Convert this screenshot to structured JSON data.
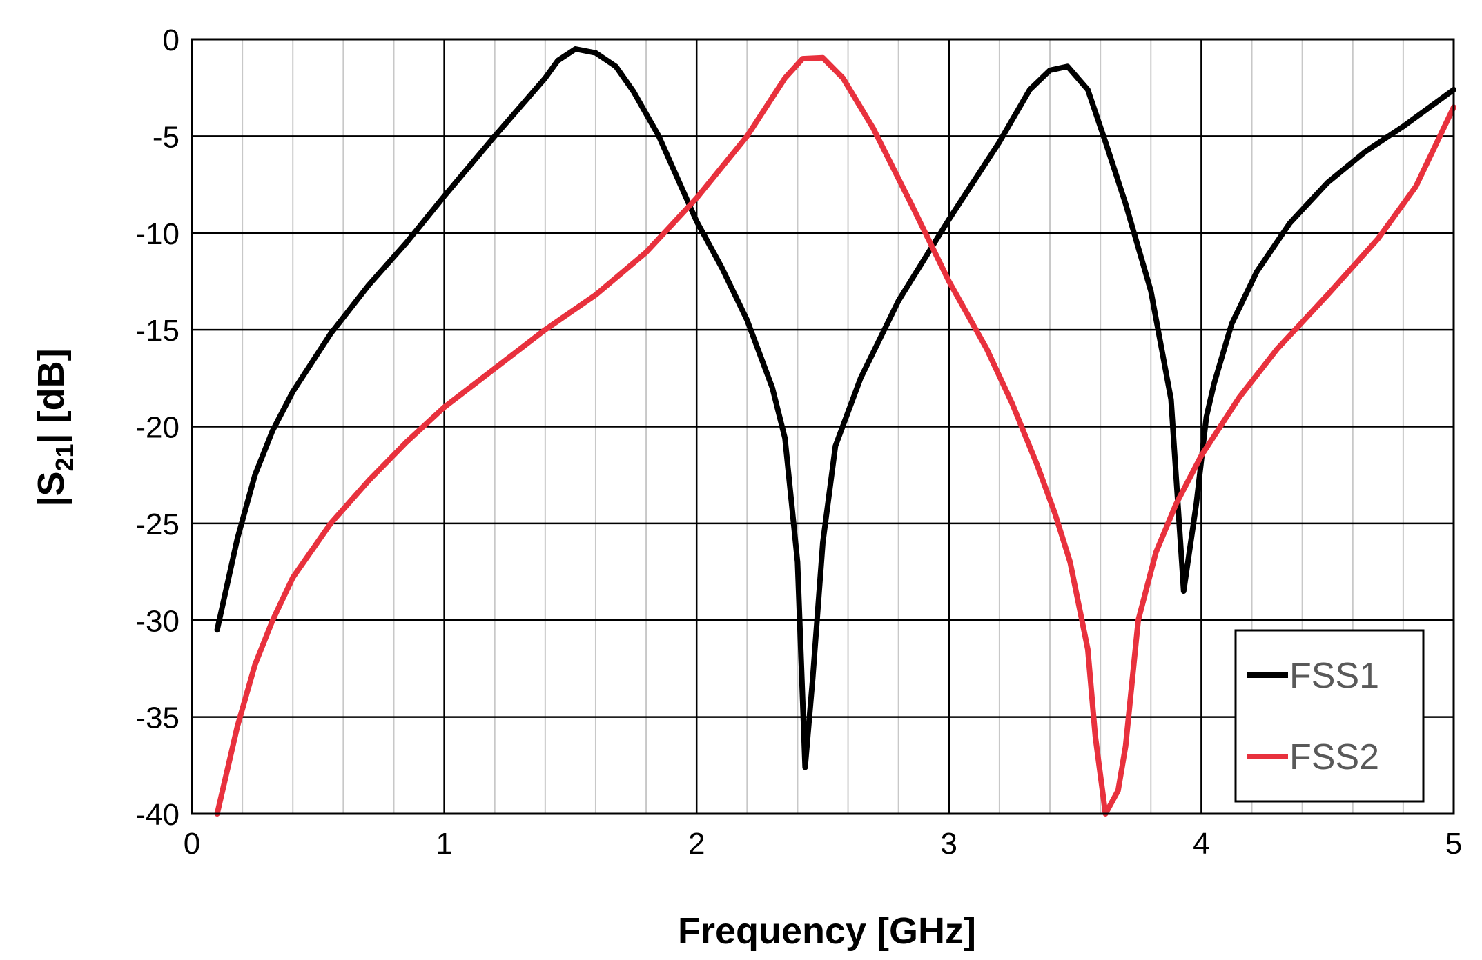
{
  "chart_data": {
    "type": "line",
    "xlabel": "Frequency [GHz]",
    "ylabel_main": "|S",
    "ylabel_sub": "21",
    "ylabel_tail": "| [dB]",
    "xlim": [
      0,
      5
    ],
    "ylim": [
      -40,
      0
    ],
    "x_ticks": [
      0,
      1,
      2,
      3,
      4,
      5
    ],
    "x_tick_labels": [
      "0",
      "1",
      "2",
      "3",
      "4",
      "5"
    ],
    "y_ticks": [
      0,
      -5,
      -10,
      -15,
      -20,
      -25,
      -30,
      -35,
      -40
    ],
    "y_tick_labels": [
      "0",
      "-5",
      "-10",
      "-15",
      "-20",
      "-25",
      "-30",
      "-35",
      "-40"
    ],
    "x_minor_step": 0.2,
    "grid": true,
    "legend": "bottom-right",
    "series": [
      {
        "name": "FSS1",
        "color": "#000000",
        "points": [
          [
            0.1,
            -30.5
          ],
          [
            0.18,
            -25.8
          ],
          [
            0.25,
            -22.5
          ],
          [
            0.32,
            -20.2
          ],
          [
            0.4,
            -18.2
          ],
          [
            0.55,
            -15.2
          ],
          [
            0.7,
            -12.7
          ],
          [
            0.85,
            -10.5
          ],
          [
            1.0,
            -8.1
          ],
          [
            1.2,
            -5.0
          ],
          [
            1.4,
            -2.0
          ],
          [
            1.45,
            -1.1
          ],
          [
            1.52,
            -0.5
          ],
          [
            1.6,
            -0.7
          ],
          [
            1.68,
            -1.4
          ],
          [
            1.75,
            -2.7
          ],
          [
            1.85,
            -5.0
          ],
          [
            2.0,
            -9.4
          ],
          [
            2.1,
            -11.8
          ],
          [
            2.2,
            -14.5
          ],
          [
            2.3,
            -18.0
          ],
          [
            2.35,
            -20.6
          ],
          [
            2.4,
            -27.0
          ],
          [
            2.43,
            -37.6
          ],
          [
            2.46,
            -33.0
          ],
          [
            2.5,
            -26.0
          ],
          [
            2.55,
            -21.0
          ],
          [
            2.65,
            -17.5
          ],
          [
            2.8,
            -13.5
          ],
          [
            3.0,
            -9.3
          ],
          [
            3.2,
            -5.3
          ],
          [
            3.32,
            -2.6
          ],
          [
            3.4,
            -1.6
          ],
          [
            3.47,
            -1.4
          ],
          [
            3.55,
            -2.6
          ],
          [
            3.62,
            -5.3
          ],
          [
            3.7,
            -8.5
          ],
          [
            3.8,
            -13.0
          ],
          [
            3.88,
            -18.6
          ],
          [
            3.93,
            -28.5
          ],
          [
            3.98,
            -24.0
          ],
          [
            4.02,
            -19.5
          ],
          [
            4.05,
            -17.8
          ],
          [
            4.12,
            -14.7
          ],
          [
            4.22,
            -12.0
          ],
          [
            4.35,
            -9.5
          ],
          [
            4.5,
            -7.4
          ],
          [
            4.65,
            -5.8
          ],
          [
            4.8,
            -4.5
          ],
          [
            5.0,
            -2.6
          ]
        ]
      },
      {
        "name": "FSS2",
        "color": "#e8313d",
        "points": [
          [
            0.1,
            -40.0
          ],
          [
            0.18,
            -35.5
          ],
          [
            0.25,
            -32.3
          ],
          [
            0.32,
            -30.0
          ],
          [
            0.4,
            -27.8
          ],
          [
            0.55,
            -25.0
          ],
          [
            0.7,
            -22.8
          ],
          [
            0.85,
            -20.8
          ],
          [
            1.0,
            -19.0
          ],
          [
            1.2,
            -17.0
          ],
          [
            1.4,
            -15.0
          ],
          [
            1.6,
            -13.2
          ],
          [
            1.8,
            -11.0
          ],
          [
            2.0,
            -8.2
          ],
          [
            2.2,
            -5.0
          ],
          [
            2.35,
            -2.0
          ],
          [
            2.42,
            -1.0
          ],
          [
            2.5,
            -0.95
          ],
          [
            2.58,
            -2.0
          ],
          [
            2.7,
            -4.6
          ],
          [
            2.85,
            -8.5
          ],
          [
            3.0,
            -12.5
          ],
          [
            3.15,
            -16.0
          ],
          [
            3.25,
            -18.8
          ],
          [
            3.35,
            -22.0
          ],
          [
            3.42,
            -24.5
          ],
          [
            3.48,
            -27.0
          ],
          [
            3.55,
            -31.5
          ],
          [
            3.58,
            -36.0
          ],
          [
            3.62,
            -40.0
          ],
          [
            3.67,
            -38.8
          ],
          [
            3.7,
            -36.5
          ],
          [
            3.75,
            -30.0
          ],
          [
            3.82,
            -26.5
          ],
          [
            3.9,
            -24.0
          ],
          [
            4.0,
            -21.5
          ],
          [
            4.15,
            -18.5
          ],
          [
            4.3,
            -16.0
          ],
          [
            4.5,
            -13.2
          ],
          [
            4.7,
            -10.3
          ],
          [
            4.85,
            -7.6
          ],
          [
            5.0,
            -3.5
          ]
        ]
      }
    ]
  }
}
